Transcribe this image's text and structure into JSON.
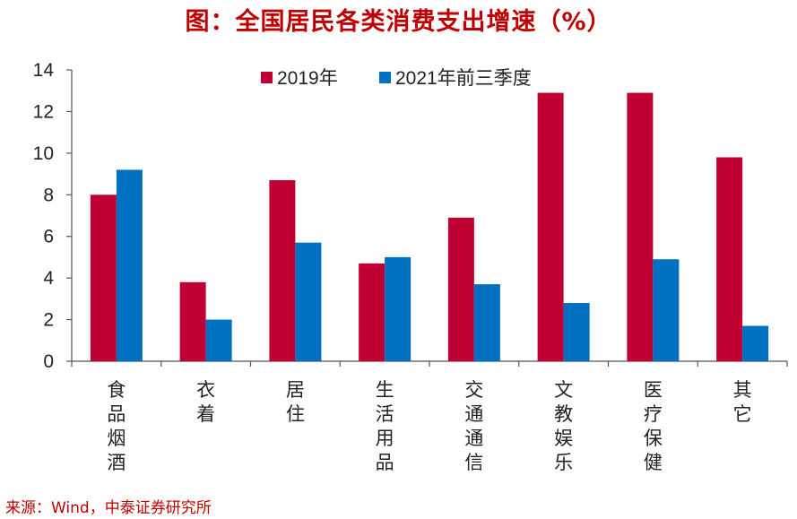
{
  "chart_data": {
    "type": "bar",
    "title": "图：全国居民各类消费支出增速（%）",
    "categories": [
      "食品烟酒",
      "衣着",
      "居住",
      "生活用品",
      "交通通信",
      "文教娱乐",
      "医疗保健",
      "其它"
    ],
    "series": [
      {
        "name": "2019年",
        "color": "#C00032",
        "values": [
          8.0,
          3.8,
          8.7,
          4.7,
          6.9,
          12.9,
          12.9,
          9.8
        ]
      },
      {
        "name": "2021年前三季度",
        "color": "#0070C0",
        "values": [
          9.2,
          2.0,
          5.7,
          5.0,
          3.7,
          2.8,
          4.9,
          1.7
        ]
      }
    ],
    "ylim": [
      0,
      14
    ],
    "yticks": [
      0,
      2,
      4,
      6,
      8,
      10,
      12,
      14
    ],
    "xlabel": "",
    "ylabel": "",
    "legend": "top-center"
  },
  "source": "来源：Wind，中泰证券研究所"
}
